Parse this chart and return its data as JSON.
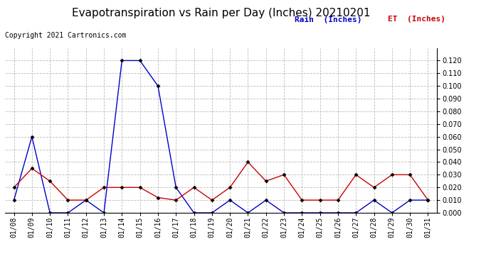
{
  "title": "Evapotranspiration vs Rain per Day (Inches) 20210201",
  "copyright": "Copyright 2021 Cartronics.com",
  "legend_rain": "Rain  (Inches)",
  "legend_et": "ET  (Inches)",
  "dates": [
    "01/08",
    "01/09",
    "01/10",
    "01/11",
    "01/12",
    "01/13",
    "01/14",
    "01/15",
    "01/16",
    "01/17",
    "01/18",
    "01/19",
    "01/20",
    "01/21",
    "01/22",
    "01/23",
    "01/24",
    "01/25",
    "01/26",
    "01/27",
    "01/28",
    "01/29",
    "01/30",
    "01/31"
  ],
  "rain": [
    0.01,
    0.06,
    0.0,
    0.0,
    0.01,
    0.0,
    0.12,
    0.12,
    0.1,
    0.02,
    0.0,
    0.0,
    0.01,
    0.0,
    0.01,
    0.0,
    0.0,
    0.0,
    0.0,
    0.0,
    0.01,
    0.0,
    0.01,
    0.01
  ],
  "et": [
    0.02,
    0.035,
    0.025,
    0.01,
    0.01,
    0.02,
    0.02,
    0.02,
    0.012,
    0.01,
    0.02,
    0.01,
    0.02,
    0.04,
    0.025,
    0.03,
    0.01,
    0.01,
    0.01,
    0.03,
    0.02,
    0.03,
    0.03,
    0.01
  ],
  "rain_color": "#0000cc",
  "et_color": "#cc0000",
  "ylim": [
    0.0,
    0.13
  ],
  "yticks": [
    0.0,
    0.01,
    0.02,
    0.03,
    0.04,
    0.05,
    0.06,
    0.07,
    0.08,
    0.09,
    0.1,
    0.11,
    0.12
  ],
  "bg_color": "#ffffff",
  "grid_color": "#bbbbbb",
  "title_fontsize": 11,
  "copyright_fontsize": 7,
  "legend_fontsize": 8,
  "tick_fontsize": 7,
  "marker": "D",
  "marker_size": 2.5,
  "line_width": 1.0
}
